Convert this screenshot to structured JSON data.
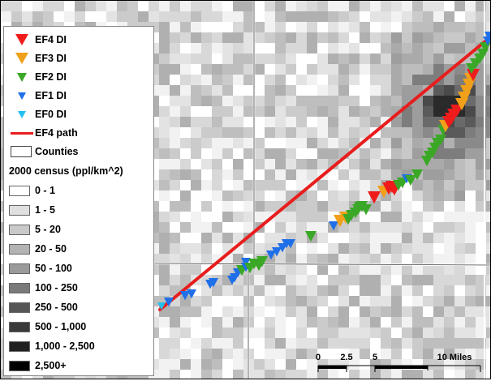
{
  "legend": {
    "items": [
      {
        "label": "EF4 DI",
        "kind": "triangle",
        "color": "#f01c1c",
        "size": "large"
      },
      {
        "label": "EF3 DI",
        "kind": "triangle",
        "color": "#f0a01a",
        "size": "large"
      },
      {
        "label": "EF2 DI",
        "kind": "triangle",
        "color": "#3aa826",
        "size": "medium"
      },
      {
        "label": "EF1 DI",
        "kind": "triangle",
        "color": "#1f6fe8",
        "size": "small"
      },
      {
        "label": "EF0 DI",
        "kind": "triangle",
        "color": "#24c0f0",
        "size": "small"
      },
      {
        "label": "EF4 path",
        "kind": "line",
        "color": "#e81d1d"
      },
      {
        "label": "Counties",
        "kind": "box"
      }
    ],
    "census_title": "2000 census (ppl/km^2)",
    "census_classes": [
      {
        "label": "0 - 1",
        "color": "#ffffff"
      },
      {
        "label": "1 - 5",
        "color": "#e0e0e0"
      },
      {
        "label": "5 - 20",
        "color": "#c9c9c9"
      },
      {
        "label": "20 - 50",
        "color": "#b3b3b3"
      },
      {
        "label": "50 - 100",
        "color": "#9a9a9a"
      },
      {
        "label": "100 - 250",
        "color": "#7a7a7a"
      },
      {
        "label": "250 - 500",
        "color": "#565656"
      },
      {
        "label": "500 - 1,000",
        "color": "#3a3a3a"
      },
      {
        "label": "1,000 - 2,500",
        "color": "#202020"
      },
      {
        "label": "2,500+",
        "color": "#000000"
      }
    ]
  },
  "scalebar": {
    "labels": [
      "0",
      "2.5",
      "5",
      "10 Miles"
    ]
  },
  "colors": {
    "ef4": "#f01c1c",
    "ef3": "#f0a01a",
    "ef2": "#3aa826",
    "ef1": "#1f6fe8",
    "ef0": "#24c0f0",
    "path": "#e81d1d",
    "county_line": "#ffffff"
  }
}
